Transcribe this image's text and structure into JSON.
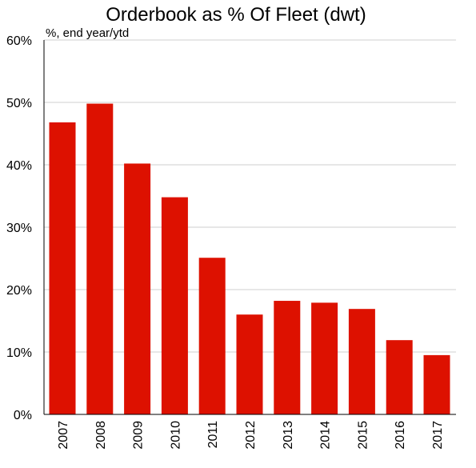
{
  "chart_data": {
    "type": "bar",
    "title": "Orderbook as % Of Fleet (dwt)",
    "subtitle": "%, end year/ytd",
    "categories": [
      "2007",
      "2008",
      "2009",
      "2010",
      "2011",
      "2012",
      "2013",
      "2014",
      "2015",
      "2016",
      "2017"
    ],
    "values": [
      46.8,
      49.8,
      40.2,
      34.8,
      25.1,
      16.0,
      18.2,
      17.9,
      16.9,
      11.9,
      9.5
    ],
    "ylim": [
      0,
      60
    ],
    "yticks": [
      0,
      10,
      20,
      30,
      40,
      50,
      60
    ],
    "ytick_labels": [
      "0%",
      "10%",
      "20%",
      "30%",
      "40%",
      "50%",
      "60%"
    ],
    "xlabel": "",
    "ylabel": "",
    "grid": true,
    "bar_color": "#dd1100"
  }
}
